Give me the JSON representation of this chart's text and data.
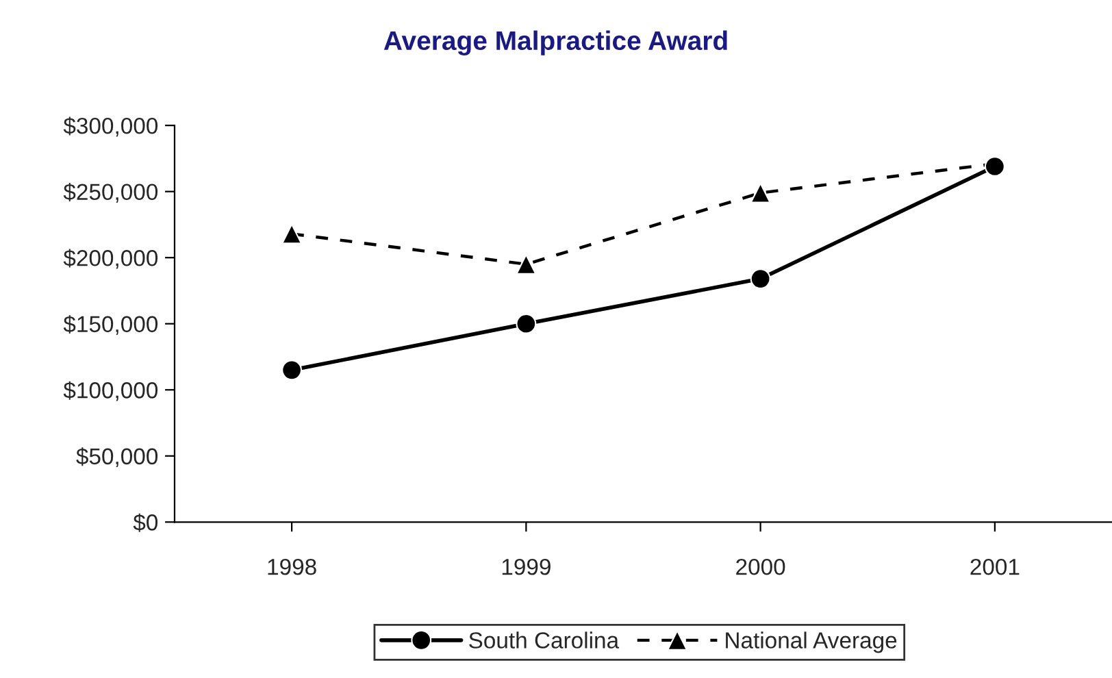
{
  "chart_data": {
    "type": "line",
    "title": "Average Malpractice Award",
    "categories": [
      "1998",
      "1999",
      "2000",
      "2001"
    ],
    "series": [
      {
        "name": "South Carolina",
        "color": "#000000",
        "values": [
          115000,
          150000,
          184000,
          269000
        ],
        "marker": "circle",
        "line_style": "solid"
      },
      {
        "name": "National Average",
        "color": "#000000",
        "values": [
          218000,
          195000,
          249000,
          271000
        ],
        "marker": "triangle",
        "line_style": "dashed"
      }
    ],
    "ylim": [
      0,
      300000
    ],
    "yticks": [
      {
        "value": 0,
        "label": "$0"
      },
      {
        "value": 50000,
        "label": "$50,000"
      },
      {
        "value": 100000,
        "label": "$100,000"
      },
      {
        "value": 150000,
        "label": "$150,000"
      },
      {
        "value": 200000,
        "label": "$200,000"
      },
      {
        "value": 250000,
        "label": "$250,000"
      },
      {
        "value": 300000,
        "label": "$300,000"
      }
    ],
    "grid": false,
    "legend": "bottom"
  }
}
